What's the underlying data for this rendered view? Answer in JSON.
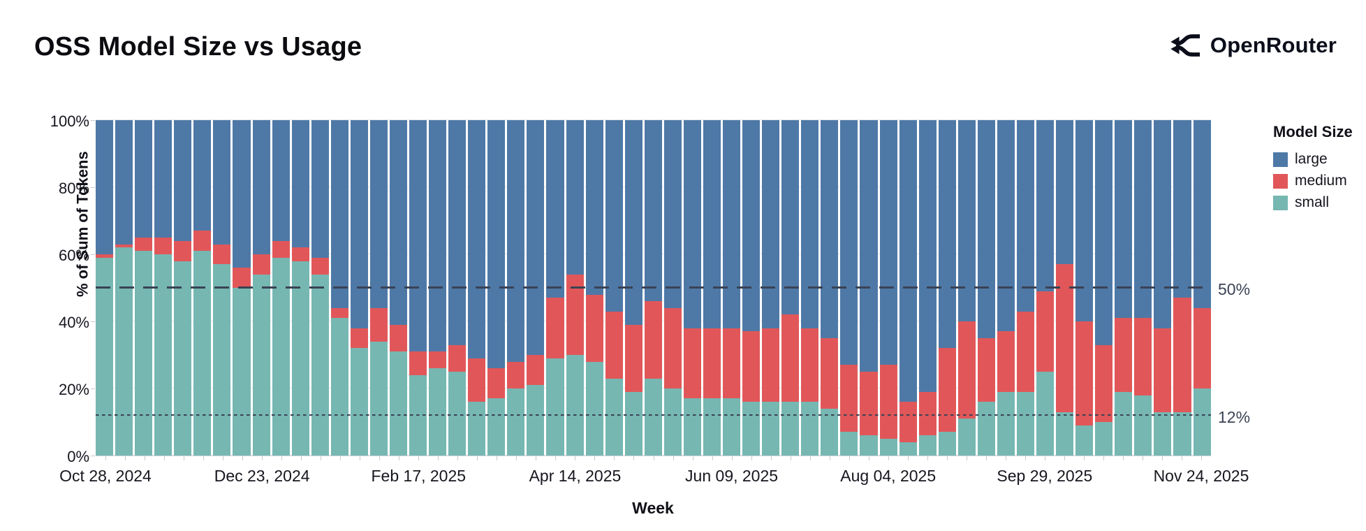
{
  "header": {
    "title": "OSS Model Size vs Usage",
    "brand": "OpenRouter"
  },
  "chart_data": {
    "type": "bar",
    "subtype": "stacked-100-percent",
    "title": "OSS Model Size vs Usage",
    "xlabel": "Week",
    "ylabel": "% of Sum of Tokens",
    "ylim": [
      0,
      100
    ],
    "grid": true,
    "legend_position": "right",
    "y_ticks": [
      "100%",
      "80%",
      "60%",
      "40%",
      "20%",
      "0%"
    ],
    "x_ticks": [
      {
        "index": 0,
        "label": "Oct 28, 2024"
      },
      {
        "index": 8,
        "label": "Dec 23, 2024"
      },
      {
        "index": 16,
        "label": "Feb 17, 2025"
      },
      {
        "index": 24,
        "label": "Apr 14, 2025"
      },
      {
        "index": 32,
        "label": "Jun 09, 2025"
      },
      {
        "index": 40,
        "label": "Aug 04, 2025"
      },
      {
        "index": 48,
        "label": "Sep 29, 2025"
      },
      {
        "index": 56,
        "label": "Nov 24, 2025"
      }
    ],
    "weeks_count": 57,
    "legend": {
      "title": "Model Size",
      "items": [
        {
          "label": "large",
          "color": "#4e79a7"
        },
        {
          "label": "medium",
          "color": "#e15759"
        },
        {
          "label": "small",
          "color": "#76b7b2"
        }
      ]
    },
    "reference_lines": [
      {
        "value": 50,
        "label": "50%",
        "style": "dashed",
        "color": "#3a4254"
      },
      {
        "value": 12,
        "label": "12%",
        "style": "dotted",
        "color": "#3a4254"
      }
    ],
    "series": [
      {
        "name": "small",
        "color": "#76b7b2",
        "values": [
          59,
          62,
          61,
          60,
          58,
          61,
          57,
          50,
          54,
          59,
          58,
          54,
          41,
          32,
          34,
          31,
          24,
          26,
          25,
          16,
          17,
          20,
          21,
          29,
          30,
          28,
          23,
          19,
          23,
          20,
          17,
          17,
          17,
          16,
          16,
          16,
          16,
          14,
          7,
          6,
          5,
          4,
          6,
          7,
          11,
          16,
          19,
          19,
          25,
          13,
          9,
          10,
          19,
          18,
          13,
          13,
          20
        ]
      },
      {
        "name": "medium",
        "color": "#e15759",
        "values": [
          1,
          1,
          4,
          5,
          6,
          6,
          6,
          6,
          6,
          5,
          4,
          5,
          3,
          6,
          10,
          8,
          7,
          5,
          8,
          13,
          9,
          8,
          9,
          18,
          24,
          20,
          20,
          20,
          23,
          24,
          21,
          21,
          21,
          21,
          22,
          26,
          22,
          21,
          20,
          19,
          22,
          12,
          13,
          25,
          29,
          19,
          18,
          24,
          24,
          44,
          31,
          23,
          22,
          23,
          25,
          34,
          24
        ]
      },
      {
        "name": "large",
        "color": "#4e79a7",
        "values": [
          40,
          37,
          35,
          35,
          36,
          33,
          37,
          44,
          40,
          36,
          38,
          41,
          56,
          62,
          56,
          61,
          69,
          69,
          67,
          71,
          74,
          72,
          70,
          53,
          46,
          52,
          57,
          61,
          54,
          56,
          62,
          62,
          62,
          63,
          62,
          58,
          62,
          65,
          73,
          75,
          73,
          84,
          81,
          68,
          60,
          65,
          63,
          57,
          51,
          43,
          60,
          67,
          59,
          59,
          62,
          53,
          56
        ]
      }
    ]
  }
}
